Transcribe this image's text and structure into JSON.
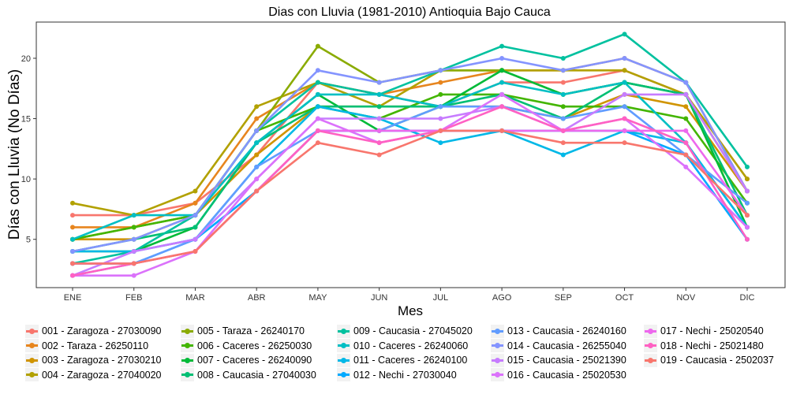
{
  "chart_data": {
    "type": "line",
    "title": "Dias con Lluvia (1981-2010)  Antioquia Bajo Cauca",
    "xlabel": "Mes",
    "ylabel": "Días con Lluvia (No Días)",
    "categories": [
      "ENE",
      "FEB",
      "MAR",
      "ABR",
      "MAY",
      "JUN",
      "JUL",
      "AGO",
      "SEP",
      "OCT",
      "NOV",
      "DIC"
    ],
    "yticks": [
      5,
      10,
      15,
      20
    ],
    "ylim": [
      1,
      23
    ],
    "grid": false,
    "legend_position": "bottom",
    "series": [
      {
        "name": "001 - Zaragoza - 27030090",
        "color": "#F8766D",
        "values": [
          7,
          7,
          8,
          12,
          18,
          17,
          16,
          18,
          18,
          19,
          17,
          10
        ]
      },
      {
        "name": "002 - Taraza - 26250110",
        "color": "#E7851E",
        "values": [
          6,
          6,
          8,
          15,
          18,
          17,
          18,
          19,
          19,
          20,
          18,
          9
        ]
      },
      {
        "name": "003 - Zaragoza - 27030210",
        "color": "#D09400",
        "values": [
          5,
          5,
          7,
          12,
          16,
          16,
          16,
          16,
          15,
          17,
          16,
          9
        ]
      },
      {
        "name": "004 - Zaragoza - 27040020",
        "color": "#B2A100",
        "values": [
          8,
          7,
          9,
          16,
          18,
          16,
          19,
          19,
          19,
          19,
          17,
          10
        ]
      },
      {
        "name": "005 - Taraza - 26240170",
        "color": "#8AAB00",
        "values": [
          5,
          6,
          7,
          14,
          21,
          18,
          19,
          19,
          17,
          18,
          17,
          9
        ]
      },
      {
        "name": "006 - Caceres - 26250030",
        "color": "#43B500",
        "values": [
          5,
          6,
          7,
          14,
          16,
          15,
          17,
          17,
          16,
          16,
          15,
          8
        ]
      },
      {
        "name": "007 - Caceres - 26240090",
        "color": "#00BA38",
        "values": [
          4,
          4,
          6,
          13,
          17,
          14,
          16,
          19,
          17,
          18,
          17,
          6
        ]
      },
      {
        "name": "008 - Caucasia - 27040030",
        "color": "#00BF74",
        "values": [
          4,
          5,
          6,
          13,
          16,
          16,
          16,
          17,
          15,
          18,
          17,
          7
        ]
      },
      {
        "name": "009 - Caucasia - 27045020",
        "color": "#00C19F",
        "values": [
          3,
          4,
          7,
          14,
          18,
          17,
          19,
          21,
          20,
          22,
          18,
          11
        ]
      },
      {
        "name": "010 - Caceres - 26240060",
        "color": "#00BFC4",
        "values": [
          5,
          7,
          7,
          13,
          17,
          17,
          16,
          18,
          17,
          18,
          13,
          6
        ]
      },
      {
        "name": "011 - Caceres - 26240100",
        "color": "#00B8E7",
        "values": [
          4,
          4,
          5,
          11,
          16,
          15,
          13,
          14,
          12,
          14,
          13,
          6
        ]
      },
      {
        "name": "012 - Nechi - 27030040",
        "color": "#00A9FF",
        "values": [
          3,
          3,
          5,
          9,
          14,
          14,
          14,
          14,
          14,
          14,
          12,
          5
        ]
      },
      {
        "name": "013 - Caucasia - 26240160",
        "color": "#619CFF",
        "values": [
          2,
          3,
          5,
          11,
          14,
          14,
          16,
          16,
          15,
          16,
          12,
          8
        ]
      },
      {
        "name": "014 - Caucasia - 26255040",
        "color": "#8494FF",
        "values": [
          4,
          5,
          7,
          14,
          19,
          18,
          19,
          20,
          19,
          20,
          18,
          9
        ]
      },
      {
        "name": "015 - Caucasia - 25021390",
        "color": "#C77CFF",
        "values": [
          2,
          4,
          5,
          10,
          15,
          15,
          15,
          16,
          14,
          17,
          17,
          9
        ]
      },
      {
        "name": "016 - Caucasia - 25020530",
        "color": "#DB72FB",
        "values": [
          2,
          2,
          4,
          10,
          15,
          13,
          14,
          17,
          14,
          15,
          11,
          6
        ]
      },
      {
        "name": "017 - Nechi - 25020540",
        "color": "#ED68ED",
        "values": [
          3,
          3,
          4,
          9,
          14,
          14,
          14,
          14,
          14,
          14,
          14,
          7
        ]
      },
      {
        "name": "018 - Nechi - 25021480",
        "color": "#FF61C3",
        "values": [
          2,
          3,
          4,
          9,
          14,
          13,
          14,
          16,
          14,
          15,
          13,
          5
        ]
      },
      {
        "name": "019 - Caucasia - 2502037",
        "color": "#F8766D",
        "values": [
          3,
          3,
          4,
          9,
          13,
          12,
          14,
          14,
          13,
          13,
          12,
          7
        ]
      }
    ]
  }
}
